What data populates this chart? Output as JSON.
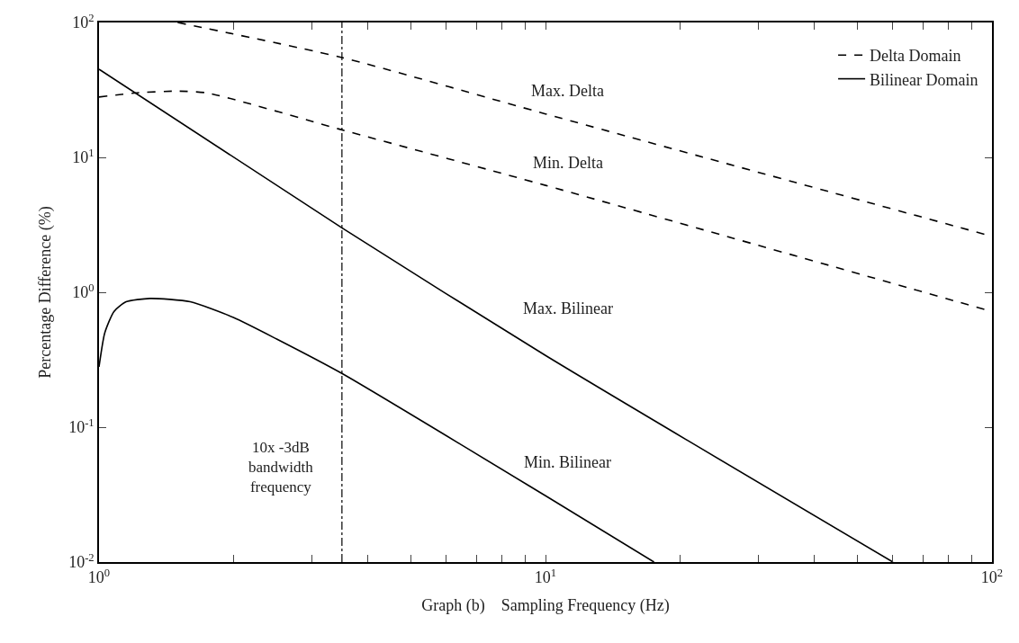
{
  "chart_data": {
    "type": "line",
    "xlabel": "Graph (b)    Sampling Frequency (Hz)",
    "ylabel": "Percentage Difference (%)",
    "log": "xy",
    "legend": "top right",
    "xlim": [
      1,
      100
    ],
    "ylim": [
      0.01,
      100
    ],
    "xticks": [
      {
        "value": 1,
        "label": "10$^{0}$"
      },
      {
        "value": 2,
        "label": null
      },
      {
        "value": 3,
        "label": null
      },
      {
        "value": 4,
        "label": null
      },
      {
        "value": 5,
        "label": null
      },
      {
        "value": 6,
        "label": null
      },
      {
        "value": 7,
        "label": null
      },
      {
        "value": 8,
        "label": null
      },
      {
        "value": 9,
        "label": null
      },
      {
        "value": 10,
        "label": "10$^{1}$"
      },
      {
        "value": 20,
        "label": null
      },
      {
        "value": 30,
        "label": null
      },
      {
        "value": 40,
        "label": null
      },
      {
        "value": 50,
        "label": null
      },
      {
        "value": 60,
        "label": null
      },
      {
        "value": 70,
        "label": null
      },
      {
        "value": 80,
        "label": null
      },
      {
        "value": 90,
        "label": null
      },
      {
        "value": 100,
        "label": "10$^{2}$"
      }
    ],
    "yticks": [
      {
        "value": 0.01,
        "label": "10$^{-2}$"
      },
      {
        "value": 0.1,
        "label": "10$^{-1}$"
      },
      {
        "value": 1,
        "label": "10$^{0}$"
      },
      {
        "value": 10,
        "label": "10$^{1}$"
      },
      {
        "value": 100,
        "label": "10$^{2}$"
      }
    ],
    "series": [
      {
        "name": "Delta Domain",
        "color": "#000000",
        "line_style": "dashed",
        "x": [
          1.5,
          3.5,
          10,
          100
        ],
        "values": [
          100,
          55,
          21,
          2.6
        ]
      },
      {
        "color": "#000000",
        "line_style": "dashed",
        "x": [
          1,
          1.2,
          1.5,
          1.75,
          3.5,
          10,
          100
        ],
        "values": [
          28,
          30,
          31,
          30,
          16,
          6.2,
          0.72
        ]
      },
      {
        "name": "Bilinear Domain",
        "color": "#000000",
        "line_style": "solid",
        "x": [
          1,
          3.5,
          10,
          60
        ],
        "values": [
          45,
          3,
          0.34,
          0.01
        ]
      },
      {
        "color": "#000000",
        "line_style": "solid",
        "x": [
          1,
          1.03,
          1.08,
          1.15,
          1.3,
          1.6,
          2,
          2.5,
          3.5,
          10,
          17.5
        ],
        "values": [
          0.28,
          0.5,
          0.72,
          0.85,
          0.9,
          0.85,
          0.65,
          0.45,
          0.25,
          0.031,
          0.01
        ]
      }
    ],
    "ref_lines": [
      {
        "axis": "x",
        "value": 3.5,
        "label": "10x -3dB\nbandwidth\nfrequency",
        "color": "#000000",
        "line_style": "dashdot"
      }
    ],
    "annotations": [
      "Max. Delta",
      "Min. Delta",
      "Max. Bilinear",
      "Min. Bilinear"
    ]
  }
}
